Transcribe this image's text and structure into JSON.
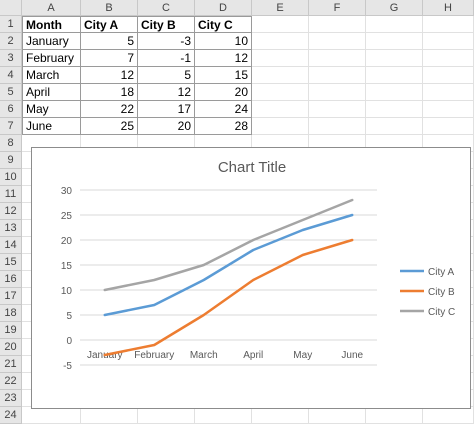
{
  "sheet": {
    "columns": [
      "A",
      "B",
      "C",
      "D",
      "E",
      "F",
      "G",
      "H"
    ],
    "rows": [
      "1",
      "2",
      "3",
      "4",
      "5",
      "6",
      "7",
      "8",
      "9",
      "10",
      "11",
      "12",
      "13",
      "14",
      "15",
      "16",
      "17",
      "18",
      "19",
      "20",
      "21",
      "22",
      "23",
      "24"
    ],
    "table": {
      "headers": [
        "Month",
        "City A",
        "City B",
        "City C"
      ],
      "rows": [
        [
          "January",
          "5",
          "-3",
          "10"
        ],
        [
          "February",
          "7",
          "-1",
          "12"
        ],
        [
          "March",
          "12",
          "5",
          "15"
        ],
        [
          "April",
          "18",
          "12",
          "20"
        ],
        [
          "May",
          "22",
          "17",
          "24"
        ],
        [
          "June",
          "25",
          "20",
          "28"
        ]
      ]
    }
  },
  "chart_data": {
    "type": "line",
    "title": "Chart Title",
    "categories": [
      "January",
      "February",
      "March",
      "April",
      "May",
      "June"
    ],
    "series": [
      {
        "name": "City A",
        "color": "#5b9bd5",
        "values": [
          5,
          7,
          12,
          18,
          22,
          25
        ]
      },
      {
        "name": "City B",
        "color": "#ed7d31",
        "values": [
          -3,
          -1,
          5,
          12,
          17,
          20
        ]
      },
      {
        "name": "City C",
        "color": "#a5a5a5",
        "values": [
          10,
          12,
          15,
          20,
          24,
          28
        ]
      }
    ],
    "ylim": [
      -5,
      30
    ],
    "yticks": [
      "30",
      "25",
      "20",
      "15",
      "10",
      "5",
      "0",
      "-5"
    ],
    "grid": true,
    "legend": "right"
  }
}
